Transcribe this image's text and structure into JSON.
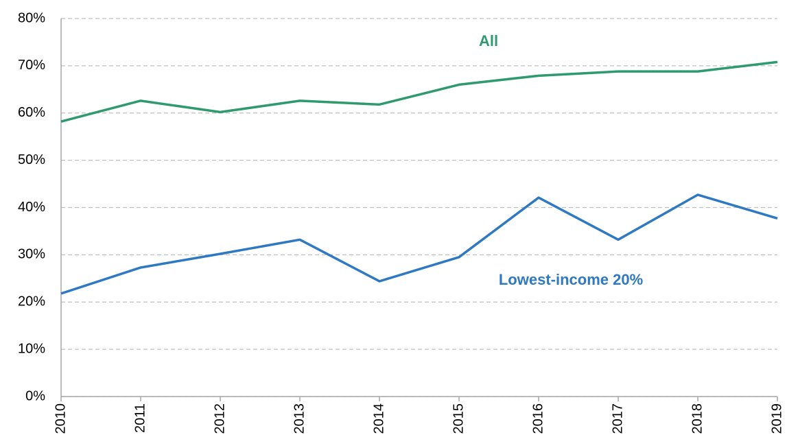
{
  "chart_data": {
    "type": "line",
    "categories": [
      "2010",
      "2011",
      "2012",
      "2013",
      "2014",
      "2015",
      "2016",
      "2017",
      "2018",
      "2019"
    ],
    "series": [
      {
        "name": "All",
        "color": "#2e9a6e",
        "values": [
          58.2,
          62.6,
          60.2,
          62.6,
          61.8,
          66.0,
          67.9,
          68.8,
          68.8,
          70.8
        ]
      },
      {
        "name": "Lowest-income 20%",
        "color": "#2e78c4",
        "values": [
          21.8,
          27.3,
          30.2,
          33.2,
          24.4,
          29.5,
          42.1,
          33.2,
          42.7,
          37.7
        ]
      }
    ],
    "ylim": [
      0,
      80
    ],
    "yticks": [
      {
        "value": 0,
        "label": "0%"
      },
      {
        "value": 10,
        "label": "10%"
      },
      {
        "value": 20,
        "label": "20%"
      },
      {
        "value": 30,
        "label": "30%"
      },
      {
        "value": 40,
        "label": "40%"
      },
      {
        "value": 50,
        "label": "50%"
      },
      {
        "value": 60,
        "label": "60%"
      },
      {
        "value": 70,
        "label": "70%"
      },
      {
        "value": 80,
        "label": "80%"
      }
    ],
    "grid": true
  }
}
